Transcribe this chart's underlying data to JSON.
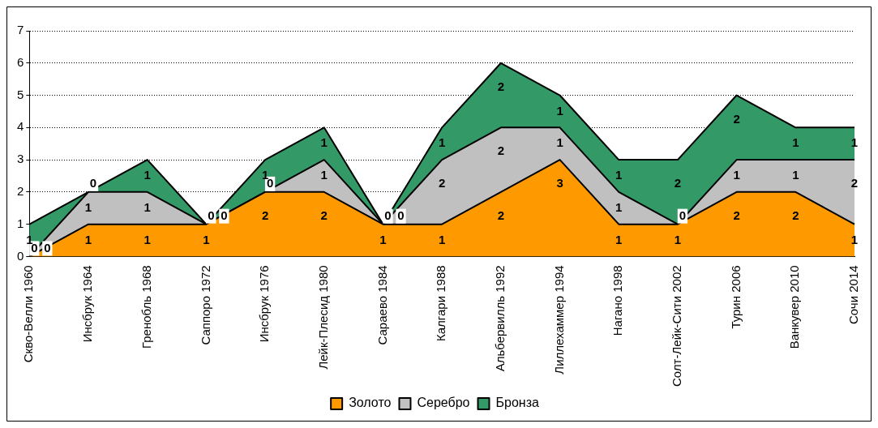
{
  "chart_data": {
    "type": "area",
    "stacked": true,
    "categories": [
      "Скво-Велли 1960",
      "Инсбрук 1964",
      "Гренобль 1968",
      "Саппоро 1972",
      "Инсбрук 1976",
      "Лейк-Плесид 1980",
      "Сараево 1984",
      "Калгари 1988",
      "Альбервилль 1992",
      "Лиллехаммер 1994",
      "Нагано 1998",
      "Солт-Лейк-Сити 2002",
      "Турин 2006",
      "Ванкувер 2010",
      "Сочи 2014"
    ],
    "series": [
      {
        "name": "Золото",
        "color": "#ff9900",
        "values": [
          0,
          1,
          1,
          1,
          2,
          2,
          1,
          1,
          2,
          3,
          1,
          1,
          2,
          2,
          1
        ]
      },
      {
        "name": "Серебро",
        "color": "#c0c0c0",
        "values": [
          0,
          1,
          1,
          0,
          0,
          1,
          0,
          2,
          2,
          1,
          1,
          0,
          1,
          1,
          2
        ]
      },
      {
        "name": "Бронза",
        "color": "#339966",
        "values": [
          1,
          0,
          1,
          0,
          1,
          1,
          0,
          1,
          2,
          1,
          1,
          2,
          2,
          1,
          1
        ]
      }
    ],
    "ylim": [
      0,
      7
    ],
    "yticks": [
      0,
      1,
      2,
      3,
      4,
      5,
      6,
      7
    ],
    "grid": "y",
    "legend": "bottom",
    "data_labels": true
  }
}
